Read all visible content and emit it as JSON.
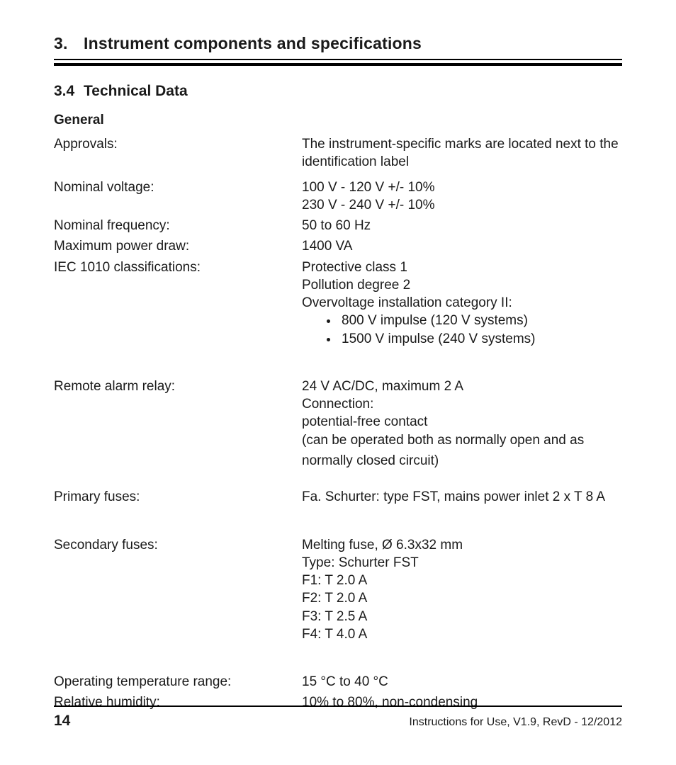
{
  "chapter": {
    "number": "3.",
    "title": "Instrument components and specifications"
  },
  "section": {
    "number": "3.4",
    "title": "Technical Data"
  },
  "subhead": "General",
  "rows": [
    {
      "label": "Approvals:",
      "lines": [
        "The instrument-specific marks are located next to the identification label"
      ],
      "cls": ""
    },
    {
      "label": "Nominal voltage:",
      "lines": [
        "100 V - 120 V  +/- 10%",
        "230 V - 240 V  +/- 10%"
      ],
      "cls": ""
    },
    {
      "label": "Nominal frequency:",
      "lines": [
        "50 to 60 Hz"
      ],
      "cls": "tight"
    },
    {
      "label": "Maximum power draw:",
      "lines": [
        "1400 VA"
      ],
      "cls": "tight"
    },
    {
      "label": "IEC 1010 classifications:",
      "lines": [
        "Protective class 1",
        "Pollution degree 2",
        "Overvoltage installation category II:"
      ],
      "bullets": [
        "800 V impulse (120 V systems)",
        "1500 V impulse (240 V systems)"
      ],
      "cls": "tight"
    },
    {
      "label": "Remote alarm relay:",
      "lines": [
        "24 V AC/DC, maximum 2 A",
        "Connection:",
        "potential-free contact",
        "(can be operated both as normally open and as"
      ],
      "cls": "gap"
    },
    {
      "label": "",
      "lines": [
        "normally closed circuit)"
      ],
      "cls": "tight"
    },
    {
      "label": "Primary fuses:",
      "lines": [
        "Fa. Schurter: type FST, mains power inlet 2 x T 8 A"
      ],
      "cls": "mgap"
    },
    {
      "label": "Secondary fuses:",
      "lines": [
        "Melting fuse, Ø 6.3x32 mm",
        "Type: Schurter FST",
        "F1: T 2.0 A",
        "F2: T 2.0 A",
        "F3: T 2.5 A",
        "F4: T 4.0 A"
      ],
      "cls": "gap"
    },
    {
      "label": "Operating temperature range:",
      "lines": [
        "15 °C to 40 °C"
      ],
      "cls": "gap"
    },
    {
      "label": "Relative humidity:",
      "lines": [
        "10% to 80%, non-condensing"
      ],
      "cls": "tight"
    }
  ],
  "footer": {
    "page": "14",
    "text": "Instructions for Use, V1.9, RevD - 12/2012"
  }
}
